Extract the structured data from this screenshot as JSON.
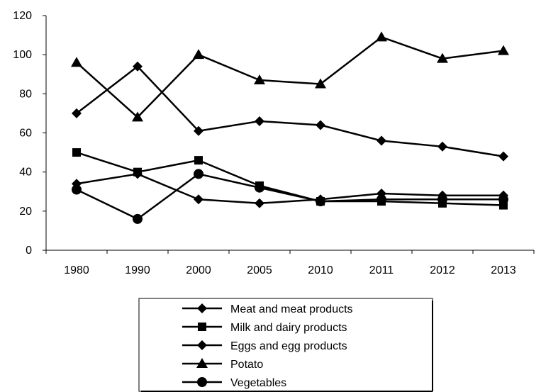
{
  "chart_data": {
    "type": "line",
    "title": "",
    "xlabel": "",
    "ylabel": "",
    "ylim": [
      0,
      120
    ],
    "yticks": [
      0,
      20,
      40,
      60,
      80,
      100,
      120
    ],
    "grid": false,
    "legend_position": "bottom",
    "categories": [
      "1980",
      "1990",
      "2000",
      "2005",
      "2010",
      "2011",
      "2012",
      "2013"
    ],
    "series": [
      {
        "name": "Meat and meat products",
        "marker": "diamond",
        "color": "#000000",
        "values": [
          70,
          94,
          61,
          66,
          64,
          56,
          53,
          48
        ]
      },
      {
        "name": "Milk and dairy products",
        "marker": "square",
        "color": "#000000",
        "values": [
          50,
          40,
          46,
          33,
          25,
          25,
          24,
          23
        ]
      },
      {
        "name": "Eggs and egg products",
        "marker": "diamond",
        "color": "#000000",
        "values": [
          34,
          39,
          26,
          24,
          26,
          29,
          28,
          28
        ]
      },
      {
        "name": "Potato",
        "marker": "triangle",
        "color": "#000000",
        "values": [
          96,
          68,
          100,
          87,
          85,
          109,
          98,
          102
        ]
      },
      {
        "name": "Vegetables",
        "marker": "circle",
        "color": "#000000",
        "values": [
          31,
          16,
          39,
          32,
          25,
          26,
          26,
          26
        ]
      }
    ]
  }
}
